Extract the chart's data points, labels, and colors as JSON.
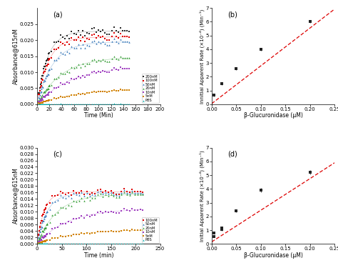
{
  "panel_a": {
    "title": "(a)",
    "xlabel": "Time (Min)",
    "ylabel": "Absorbance@615nM",
    "xlim": [
      0,
      200
    ],
    "ylim": [
      0,
      0.03
    ],
    "yticks": [
      0.0,
      0.005,
      0.01,
      0.015,
      0.02,
      0.025
    ],
    "xticks": [
      0,
      20,
      40,
      60,
      80,
      100,
      120,
      140,
      160,
      180,
      200
    ],
    "series": [
      {
        "label": "200nM",
        "color": "#2c2c2c",
        "marker": "s",
        "plateau": 0.0228,
        "k": 0.06,
        "t_end": 150,
        "t_start": 2
      },
      {
        "label": "100nM",
        "color": "#e00000",
        "marker": "s",
        "plateau": 0.021,
        "k": 0.055,
        "t_end": 150,
        "t_start": 2
      },
      {
        "label": "50nM",
        "color": "#3375b7",
        "marker": "^",
        "plateau": 0.0195,
        "k": 0.04,
        "t_end": 150,
        "t_start": 2
      },
      {
        "label": "20nM",
        "color": "#2e9a2e",
        "marker": "^",
        "plateau": 0.0148,
        "k": 0.025,
        "t_end": 150,
        "t_start": 2
      },
      {
        "label": "10nM",
        "color": "#a040c0",
        "marker": "s",
        "plateau": 0.012,
        "k": 0.018,
        "t_end": 150,
        "t_start": 2
      },
      {
        "label": "5nM",
        "color": "#d08000",
        "marker": "s",
        "plateau": 0.005,
        "k": 0.015,
        "t_end": 150,
        "t_start": 2
      },
      {
        "label": "PBS",
        "color": "#00aaaa",
        "marker": "^",
        "plateau": 5e-05,
        "k": 0.001,
        "t_end": 150,
        "t_start": 2
      }
    ]
  },
  "panel_b": {
    "title": "(b)",
    "xlabel": "β-Glucuronidase (μM)",
    "ylabel": "Innitial Apparent Rate (×10⁻⁴) (Min⁻¹)",
    "xlim": [
      0,
      0.25
    ],
    "ylim": [
      0,
      7
    ],
    "xticks": [
      0.0,
      0.05,
      0.1,
      0.15,
      0.2,
      0.25
    ],
    "yticks": [
      0,
      1,
      2,
      3,
      4,
      5,
      6,
      7
    ],
    "points_x": [
      0.005,
      0.02,
      0.05,
      0.1,
      0.2
    ],
    "points_y": [
      0.65,
      1.5,
      2.6,
      4.0,
      6.0
    ],
    "points_yerr": [
      0.07,
      0.1,
      0.12,
      0.1,
      0.1
    ],
    "fit_slope": 27.5,
    "fit_intercept": 0.05,
    "line_color": "#dd0000"
  },
  "panel_c": {
    "title": "(c)",
    "xlabel": "Time (min)",
    "ylabel": "Absorbance@615nM",
    "xlim": [
      0,
      250
    ],
    "ylim": [
      0,
      0.03
    ],
    "yticks": [
      0.0,
      0.002,
      0.004,
      0.006,
      0.008,
      0.01,
      0.012,
      0.014,
      0.016,
      0.018,
      0.02,
      0.022,
      0.024,
      0.026,
      0.028,
      0.03
    ],
    "xticks": [
      0,
      50,
      100,
      150,
      200,
      250
    ],
    "series": [
      {
        "label": "100nM",
        "color": "#e00000",
        "marker": "s",
        "plateau": 0.0162,
        "k": 0.07,
        "t_end": 215,
        "t_start": 2
      },
      {
        "label": "50nM",
        "color": "#3375b7",
        "marker": "^",
        "plateau": 0.0158,
        "k": 0.05,
        "t_end": 215,
        "t_start": 2
      },
      {
        "label": "20nM",
        "color": "#2e9a2e",
        "marker": "^",
        "plateau": 0.0155,
        "k": 0.025,
        "t_end": 215,
        "t_start": 2
      },
      {
        "label": "10nM",
        "color": "#a040c0",
        "marker": "s",
        "plateau": 0.011,
        "k": 0.016,
        "t_end": 215,
        "t_start": 2
      },
      {
        "label": "5nM",
        "color": "#d08000",
        "marker": "s",
        "plateau": 0.0045,
        "k": 0.014,
        "t_end": 215,
        "t_start": 2
      },
      {
        "label": "PBS",
        "color": "#00aaaa",
        "marker": "^",
        "plateau": 5e-05,
        "k": 0.001,
        "t_end": 215,
        "t_start": 2
      }
    ]
  },
  "panel_d": {
    "title": "(d)",
    "xlabel": "β-Glucuronidase (μM)",
    "ylabel": "Initial Apparent Rate (×10⁻⁴) (Min⁻¹)",
    "xlim": [
      0,
      0.25
    ],
    "ylim": [
      0,
      7
    ],
    "xticks": [
      0.0,
      0.05,
      0.1,
      0.15,
      0.2,
      0.25
    ],
    "yticks": [
      0,
      1,
      2,
      3,
      4,
      5,
      6,
      7
    ],
    "points_x": [
      0.005,
      0.005,
      0.02,
      0.02,
      0.05,
      0.1,
      0.2
    ],
    "points_y": [
      0.55,
      0.8,
      1.05,
      1.15,
      2.4,
      3.9,
      5.2
    ],
    "points_yerr": [
      0.06,
      0.06,
      0.08,
      0.08,
      0.12,
      0.15,
      0.15
    ],
    "fit_slope": 23.0,
    "fit_intercept": 0.15,
    "line_color": "#dd0000"
  },
  "bg_color": "#ffffff",
  "font_size": 5.5,
  "marker_size": 3
}
